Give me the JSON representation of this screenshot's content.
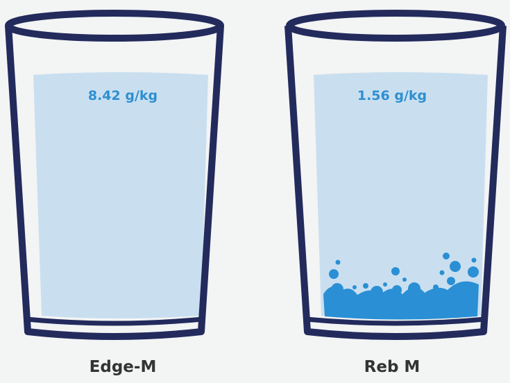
{
  "glasses": [
    {
      "label": "Edge-M",
      "amount": "8.42 g/kg"
    },
    {
      "label": "Reb M",
      "amount": "1.56 g/kg"
    }
  ]
}
